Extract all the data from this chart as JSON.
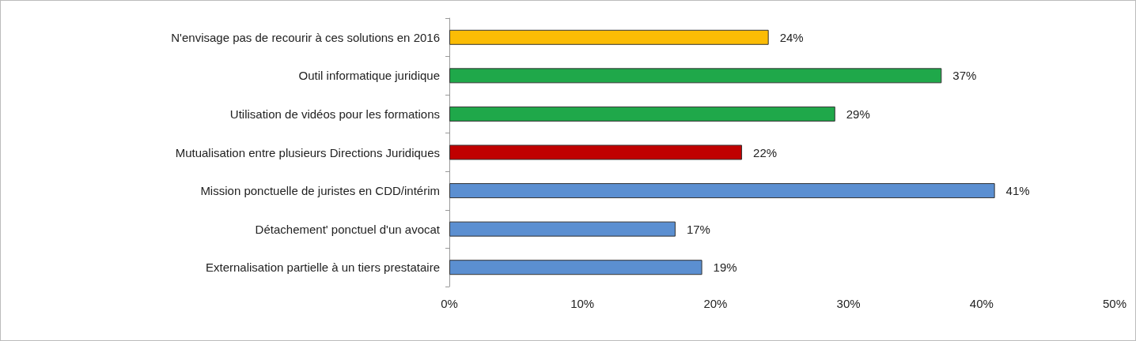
{
  "chart_data": {
    "type": "bar",
    "orientation": "horizontal",
    "categories": [
      "N'envisage pas de recourir à ces solutions en 2016",
      "Outil informatique juridique",
      "Utilisation de vidéos pour les formations",
      "Mutualisation entre plusieurs Directions Juridiques",
      "Mission ponctuelle de juristes en CDD/intérim",
      "Détachement' ponctuel d'un avocat",
      "Externalisation partielle à un tiers prestataire"
    ],
    "values": [
      24,
      37,
      29,
      22,
      41,
      17,
      19
    ],
    "value_labels": [
      "24%",
      "37%",
      "29%",
      "22%",
      "41%",
      "17%",
      "19%"
    ],
    "colors": [
      "#fbbc05",
      "#1fa84a",
      "#1fa84a",
      "#c00000",
      "#5b8fd1",
      "#5b8fd1",
      "#5b8fd1"
    ],
    "xlim": [
      0,
      50
    ],
    "xticks": [
      {
        "value": 0,
        "label": "0%"
      },
      {
        "value": 10,
        "label": "10%"
      },
      {
        "value": 20,
        "label": "20%"
      },
      {
        "value": 30,
        "label": "30%"
      },
      {
        "value": 40,
        "label": "40%"
      },
      {
        "value": 50,
        "label": "50%"
      }
    ],
    "grid": false
  }
}
